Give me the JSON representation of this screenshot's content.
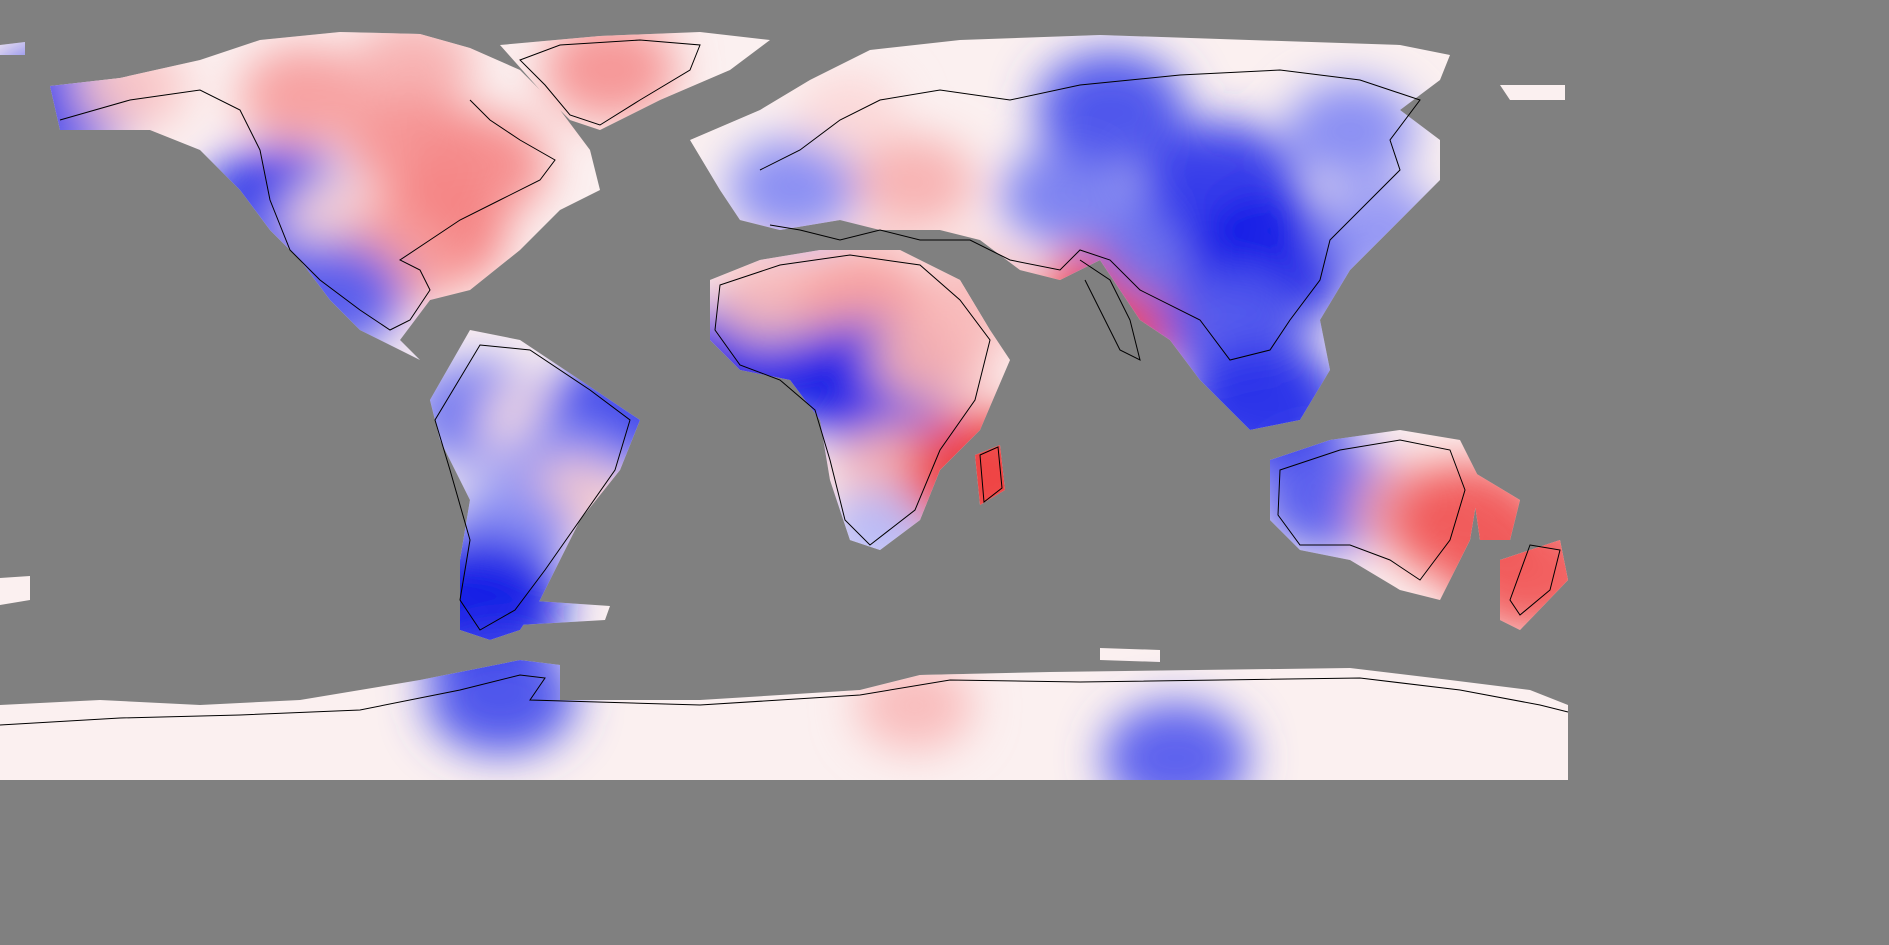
{
  "map": {
    "projection": "equirectangular",
    "extent": {
      "lon": [
        -180,
        180
      ],
      "lat": [
        -90,
        90
      ]
    },
    "background_color": "#808080",
    "coastline_color": "#000000",
    "color_scale": {
      "negative": "#0a14e6",
      "zero": "#ffffff",
      "positive": "#ee3c3c"
    },
    "regions": [
      {
        "id": "alaska-west",
        "lon": -166,
        "lat": 66,
        "value": -0.8
      },
      {
        "id": "alaska-north",
        "lon": -150,
        "lat": 70,
        "value": 0.3
      },
      {
        "id": "northern-canada",
        "lon": -110,
        "lat": 68,
        "value": 0.5
      },
      {
        "id": "canadian-arctic",
        "lon": -85,
        "lat": 75,
        "value": 0.4
      },
      {
        "id": "hudson-bay-region",
        "lon": -85,
        "lat": 57,
        "value": 0.55
      },
      {
        "id": "eastern-canada",
        "lon": -70,
        "lat": 52,
        "value": 0.6
      },
      {
        "id": "greenland",
        "lon": -40,
        "lat": 74,
        "value": 0.55
      },
      {
        "id": "western-us",
        "lon": -116,
        "lat": 42,
        "value": -0.9
      },
      {
        "id": "california-baja",
        "lon": -115,
        "lat": 31,
        "value": -0.6
      },
      {
        "id": "great-plains",
        "lon": -102,
        "lat": 40,
        "value": 0.2
      },
      {
        "id": "eastern-us",
        "lon": -80,
        "lat": 36,
        "value": 0.65
      },
      {
        "id": "gulf-coast",
        "lon": -90,
        "lat": 30,
        "value": 0.5
      },
      {
        "id": "mexico-west",
        "lon": -104,
        "lat": 22,
        "value": -0.7
      },
      {
        "id": "amazon-west",
        "lon": -70,
        "lat": -5,
        "value": -0.6
      },
      {
        "id": "amazon-central",
        "lon": -58,
        "lat": -7,
        "value": 0.15
      },
      {
        "id": "northeast-brazil",
        "lon": -38,
        "lat": -5,
        "value": -0.8
      },
      {
        "id": "central-brazil",
        "lon": -50,
        "lat": -18,
        "value": -0.5
      },
      {
        "id": "southern-brazil",
        "lon": -48,
        "lat": -25,
        "value": 0.25
      },
      {
        "id": "argentina",
        "lon": -63,
        "lat": -32,
        "value": -0.5
      },
      {
        "id": "patagonia",
        "lon": -70,
        "lat": -48,
        "value": -1.0
      },
      {
        "id": "west-africa-coast",
        "lon": -8,
        "lat": 8,
        "value": -0.95
      },
      {
        "id": "sahara-west",
        "lon": -3,
        "lat": 22,
        "value": 0.35
      },
      {
        "id": "sahara-central",
        "lon": 18,
        "lat": 22,
        "value": 0.5
      },
      {
        "id": "central-africa",
        "lon": 20,
        "lat": 2,
        "value": -0.95
      },
      {
        "id": "east-africa",
        "lon": 34,
        "lat": 8,
        "value": 0.4
      },
      {
        "id": "southern-africa",
        "lon": 26,
        "lat": -18,
        "value": 0.4
      },
      {
        "id": "south-africa-cape",
        "lon": 22,
        "lat": -32,
        "value": -0.3
      },
      {
        "id": "madagascar",
        "lon": 47,
        "lat": -19,
        "value": 1.0
      },
      {
        "id": "western-europe",
        "lon": 2,
        "lat": 47,
        "value": -0.5
      },
      {
        "id": "scandinavia",
        "lon": 15,
        "lat": 64,
        "value": 0.2
      },
      {
        "id": "eastern-europe",
        "lon": 30,
        "lat": 48,
        "value": 0.4
      },
      {
        "id": "arabia",
        "lon": 45,
        "lat": 22,
        "value": 0.35
      },
      {
        "id": "central-asia",
        "lon": 65,
        "lat": 45,
        "value": -0.55
      },
      {
        "id": "northern-siberia",
        "lon": 75,
        "lat": 65,
        "value": -0.75
      },
      {
        "id": "india",
        "lon": 78,
        "lat": 20,
        "value": 1.0
      },
      {
        "id": "tibet",
        "lon": 88,
        "lat": 33,
        "value": -0.6
      },
      {
        "id": "mongolia",
        "lon": 100,
        "lat": 48,
        "value": -0.85
      },
      {
        "id": "east-siberia",
        "lon": 130,
        "lat": 60,
        "value": -0.5
      },
      {
        "id": "eastern-china",
        "lon": 112,
        "lat": 30,
        "value": -1.0
      },
      {
        "id": "southeast-asia",
        "lon": 103,
        "lat": 15,
        "value": -0.7
      },
      {
        "id": "indonesia",
        "lon": 110,
        "lat": -3,
        "value": -0.9
      },
      {
        "id": "japan",
        "lon": 137,
        "lat": 37,
        "value": -0.45
      },
      {
        "id": "western-australia",
        "lon": 125,
        "lat": -24,
        "value": -0.7
      },
      {
        "id": "eastern-australia",
        "lon": 145,
        "lat": -27,
        "value": 0.45
      },
      {
        "id": "tasman-sea",
        "lon": 157,
        "lat": -30,
        "value": 0.85
      },
      {
        "id": "new-zealand",
        "lon": 172,
        "lat": -42,
        "value": 0.85
      },
      {
        "id": "antarctic-peninsula",
        "lon": -65,
        "lat": -70,
        "value": -0.75
      },
      {
        "id": "antarctica-coast",
        "lon": 30,
        "lat": -72,
        "value": 0.35
      },
      {
        "id": "antarctica-interior",
        "lon": 90,
        "lat": -84,
        "value": -0.7
      }
    ]
  }
}
